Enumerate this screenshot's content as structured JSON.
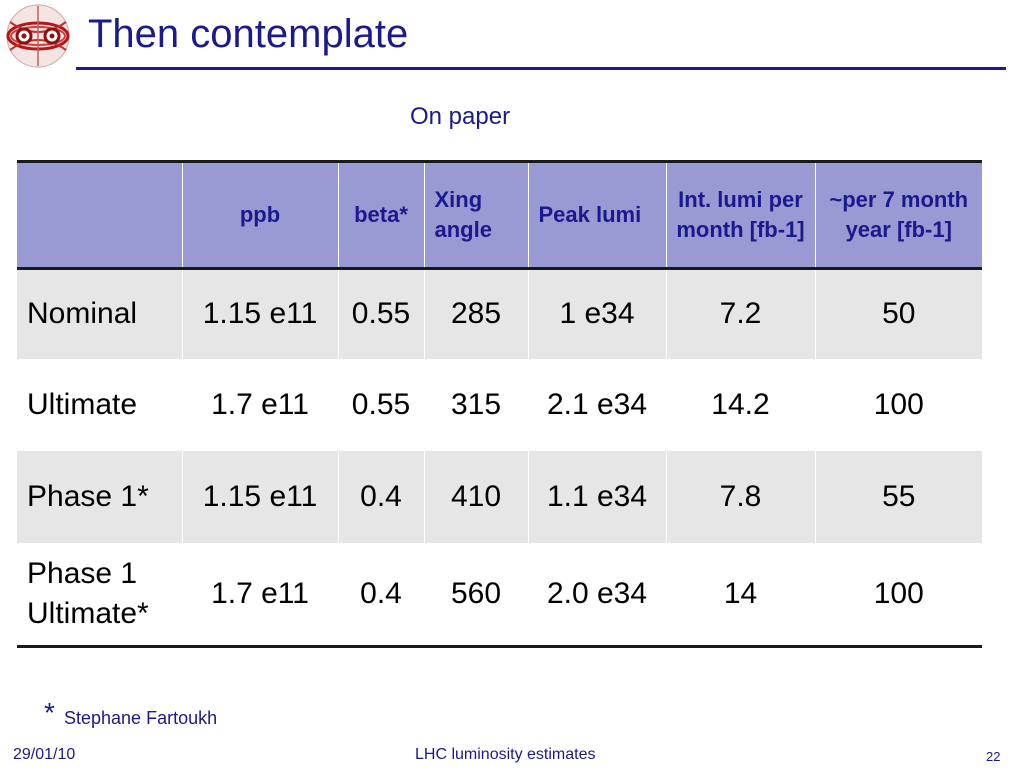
{
  "slide": {
    "title": "Then contemplate",
    "subtitle": "On paper",
    "logo_icon": "lhc-logo-icon",
    "accent_color": "#1a1a8c",
    "header_fill": "#9999d4",
    "stripe_fill": "#e6e6e6"
  },
  "table": {
    "headers": [
      "",
      "ppb",
      "beta*",
      "Xing angle",
      "Peak lumi",
      "Int. lumi per month [fb-1]",
      "~per 7 month year [fb-1]"
    ],
    "rows": [
      [
        "Nominal",
        "1.15 e11",
        "0.55",
        "285",
        "1 e34",
        "7.2",
        "50"
      ],
      [
        "Ultimate",
        "1.7 e11",
        "0.55",
        "315",
        "2.1 e34",
        "14.2",
        "100"
      ],
      [
        "Phase 1*",
        "1.15 e11",
        "0.4",
        "410",
        "1.1 e34",
        "7.8",
        "55"
      ],
      [
        "Phase 1 Ultimate*",
        "1.7 e11",
        "0.4",
        "560",
        "2.0 e34",
        "14",
        "100"
      ]
    ]
  },
  "footnote": {
    "marker": "*",
    "text": "Stephane Fartoukh"
  },
  "footer": {
    "date": "29/01/10",
    "center": "LHC luminosity estimates",
    "page": "22"
  }
}
